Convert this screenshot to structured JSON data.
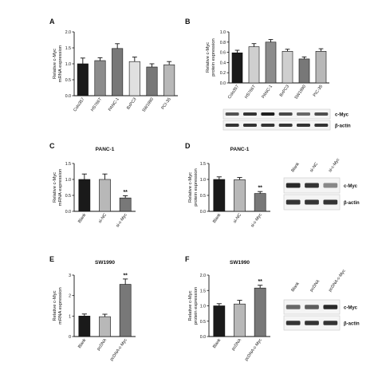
{
  "figure": {
    "colors": {
      "black": "#1a1a1a",
      "gray_dark": "#787878",
      "gray_mid": "#8c8c8c",
      "gray_light": "#b8b8b8",
      "gray_lighter": "#cfcfcf",
      "white": "#ffffff",
      "stroke": "#111111"
    }
  },
  "chart_data": [
    {
      "panel": "A",
      "type": "bar",
      "title": "",
      "ylabel": "Relative c-Myc\nmRNA expression",
      "categories": [
        "Colo357",
        "HS766T",
        "PANC-1",
        "BxPC3",
        "SW1990",
        "PCI-35"
      ],
      "values": [
        1.0,
        1.1,
        1.48,
        1.07,
        0.9,
        0.97
      ],
      "errors": [
        0.18,
        0.09,
        0.15,
        0.14,
        0.1,
        0.1
      ],
      "bar_colors": [
        "#1a1a1a",
        "#8c8c8c",
        "#787878",
        "#e0e0e0",
        "#787878",
        "#b8b8b8"
      ],
      "ylim": [
        0,
        2.0
      ],
      "yticks": [
        "0.0",
        "0.5",
        "1.0",
        "1.5",
        "2.0"
      ]
    },
    {
      "panel": "B",
      "type": "bar",
      "title": "",
      "ylabel": "Relative c-Myc\nprotein expression",
      "categories": [
        "Colo357",
        "HS766T",
        "PANC-1",
        "BxPC3",
        "SW1990",
        "PIC-35"
      ],
      "values": [
        0.59,
        0.71,
        0.8,
        0.62,
        0.47,
        0.62
      ],
      "errors": [
        0.05,
        0.06,
        0.05,
        0.04,
        0.04,
        0.05
      ],
      "bar_colors": [
        "#1a1a1a",
        "#cfcfcf",
        "#8c8c8c",
        "#cfcfcf",
        "#787878",
        "#b8b8b8"
      ],
      "ylim": [
        0,
        1.0
      ],
      "yticks": [
        "0.0",
        "0.2",
        "0.4",
        "0.6",
        "0.8",
        "1.0"
      ],
      "blot": {
        "labels": [
          "c-Myc",
          "β-actin"
        ],
        "lanes": 6,
        "intensity": [
          [
            0.7,
            0.85,
            0.95,
            0.75,
            0.6,
            0.72
          ],
          [
            0.85,
            0.85,
            0.85,
            0.85,
            0.85,
            0.85
          ]
        ]
      }
    },
    {
      "panel": "C",
      "type": "bar",
      "title": "PANC-1",
      "ylabel": "Relative c-Myc\nmRNA expression",
      "categories": [
        "Blank",
        "si-NC",
        "si-c-Myc"
      ],
      "values": [
        1.0,
        1.0,
        0.42
      ],
      "errors": [
        0.17,
        0.17,
        0.07
      ],
      "significance": [
        "",
        "",
        "**"
      ],
      "bar_colors": [
        "#1a1a1a",
        "#b8b8b8",
        "#787878"
      ],
      "ylim": [
        0,
        1.5
      ],
      "yticks": [
        "0.0",
        "0.5",
        "1.0",
        "1.5"
      ]
    },
    {
      "panel": "D",
      "type": "bar",
      "title": "PANC-1",
      "ylabel": "Relative c-Myc\nprotein expression",
      "categories": [
        "Blank",
        "si-NC",
        "si-c-Myc"
      ],
      "values": [
        1.0,
        0.99,
        0.56
      ],
      "errors": [
        0.08,
        0.07,
        0.06
      ],
      "significance": [
        "",
        "",
        "**"
      ],
      "bar_colors": [
        "#1a1a1a",
        "#b8b8b8",
        "#787878"
      ],
      "ylim": [
        0,
        1.5
      ],
      "yticks": [
        "0.0",
        "0.5",
        "1.0",
        "1.5"
      ],
      "blot": {
        "lane_labels": [
          "Blank",
          "si-NC",
          "si-c-Myc"
        ],
        "labels": [
          "c-Myc",
          "β-actin"
        ],
        "lanes": 3,
        "intensity": [
          [
            0.9,
            0.85,
            0.45
          ],
          [
            0.85,
            0.85,
            0.85
          ]
        ]
      }
    },
    {
      "panel": "E",
      "type": "bar",
      "title": "SW1990",
      "ylabel": "Relative c-Myc\nmRNA expression",
      "categories": [
        "Blank",
        "pcDNA",
        "pcDNA-c-Myc"
      ],
      "values": [
        1.0,
        0.97,
        2.55
      ],
      "errors": [
        0.1,
        0.12,
        0.26
      ],
      "significance": [
        "",
        "",
        "**"
      ],
      "bar_colors": [
        "#1a1a1a",
        "#b8b8b8",
        "#787878"
      ],
      "ylim": [
        0,
        3.0
      ],
      "yticks": [
        "0",
        "1",
        "2",
        "3"
      ]
    },
    {
      "panel": "F",
      "type": "bar",
      "title": "SW1990",
      "ylabel": "Relative c-Myc\nprotein expression",
      "categories": [
        "Blank",
        "pcDNA",
        "pcDNA-c-Myc"
      ],
      "values": [
        1.0,
        1.06,
        1.58
      ],
      "errors": [
        0.07,
        0.12,
        0.09
      ],
      "significance": [
        "",
        "",
        "**"
      ],
      "bar_colors": [
        "#1a1a1a",
        "#b8b8b8",
        "#787878"
      ],
      "ylim": [
        0,
        2.0
      ],
      "yticks": [
        "0.0",
        "0.5",
        "1.0",
        "1.5",
        "2.0"
      ],
      "blot": {
        "lane_labels": [
          "Blank",
          "pcDNA",
          "pcDNA-c-Myc"
        ],
        "labels": [
          "c-Myc",
          "β-actin"
        ],
        "lanes": 3,
        "intensity": [
          [
            0.6,
            0.65,
            0.9
          ],
          [
            0.85,
            0.85,
            0.85
          ]
        ]
      }
    }
  ]
}
